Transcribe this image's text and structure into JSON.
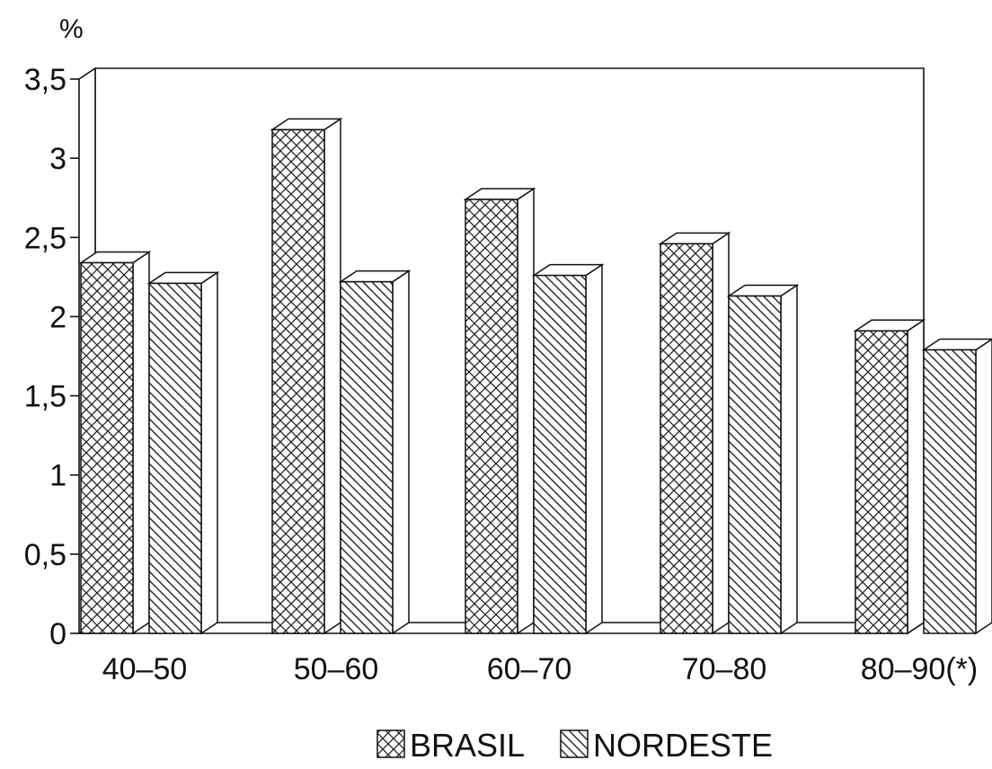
{
  "chart_data": {
    "type": "bar",
    "style": "3d-hatched",
    "unit_label": "%",
    "categories": [
      "40–50",
      "50–60",
      "60–70",
      "70–80",
      "80–90(*)"
    ],
    "y_ticks": [
      "0",
      "0,5",
      "1",
      "1,5",
      "2",
      "2,5",
      "3",
      "3,5"
    ],
    "ylim": [
      0,
      3.5
    ],
    "series": [
      {
        "name": "BRASIL",
        "pattern": "crosshatch",
        "values": [
          2.34,
          3.18,
          2.74,
          2.46,
          1.91
        ]
      },
      {
        "name": "NORDESTE",
        "pattern": "diagonal",
        "values": [
          2.21,
          2.22,
          2.26,
          2.13,
          1.79
        ]
      }
    ],
    "legend_position": "bottom-center",
    "grid": false
  }
}
